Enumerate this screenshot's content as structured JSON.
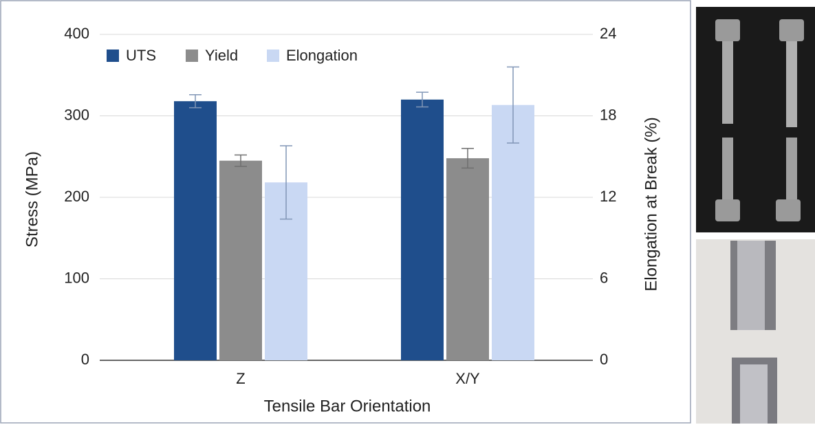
{
  "chart_data": {
    "type": "bar",
    "xlabel": "Tensile Bar Orientation",
    "ylabel": "Stress (MPa)",
    "y2label": "Elongation at Break (%)",
    "categories": [
      "Z",
      "X/Y"
    ],
    "series": [
      {
        "name": "UTS",
        "color": "#1f4e8c",
        "values": [
          318,
          320
        ],
        "errors": [
          8,
          9
        ]
      },
      {
        "name": "Yield",
        "color": "#8c8c8c",
        "values": [
          245,
          248
        ],
        "errors": [
          7,
          12
        ]
      },
      {
        "name": "Elongation",
        "color": "#c9d8f3",
        "values": [
          13.1,
          18.8
        ],
        "errors": [
          2.7,
          2.8
        ],
        "axis": "y2"
      }
    ],
    "ylim": [
      0,
      400
    ],
    "yticks": [
      0,
      100,
      200,
      300,
      400
    ],
    "y2lim": [
      0,
      24
    ],
    "y2ticks": [
      0,
      6,
      12,
      18,
      24
    ],
    "grid": true,
    "legend": "top-left"
  }
}
